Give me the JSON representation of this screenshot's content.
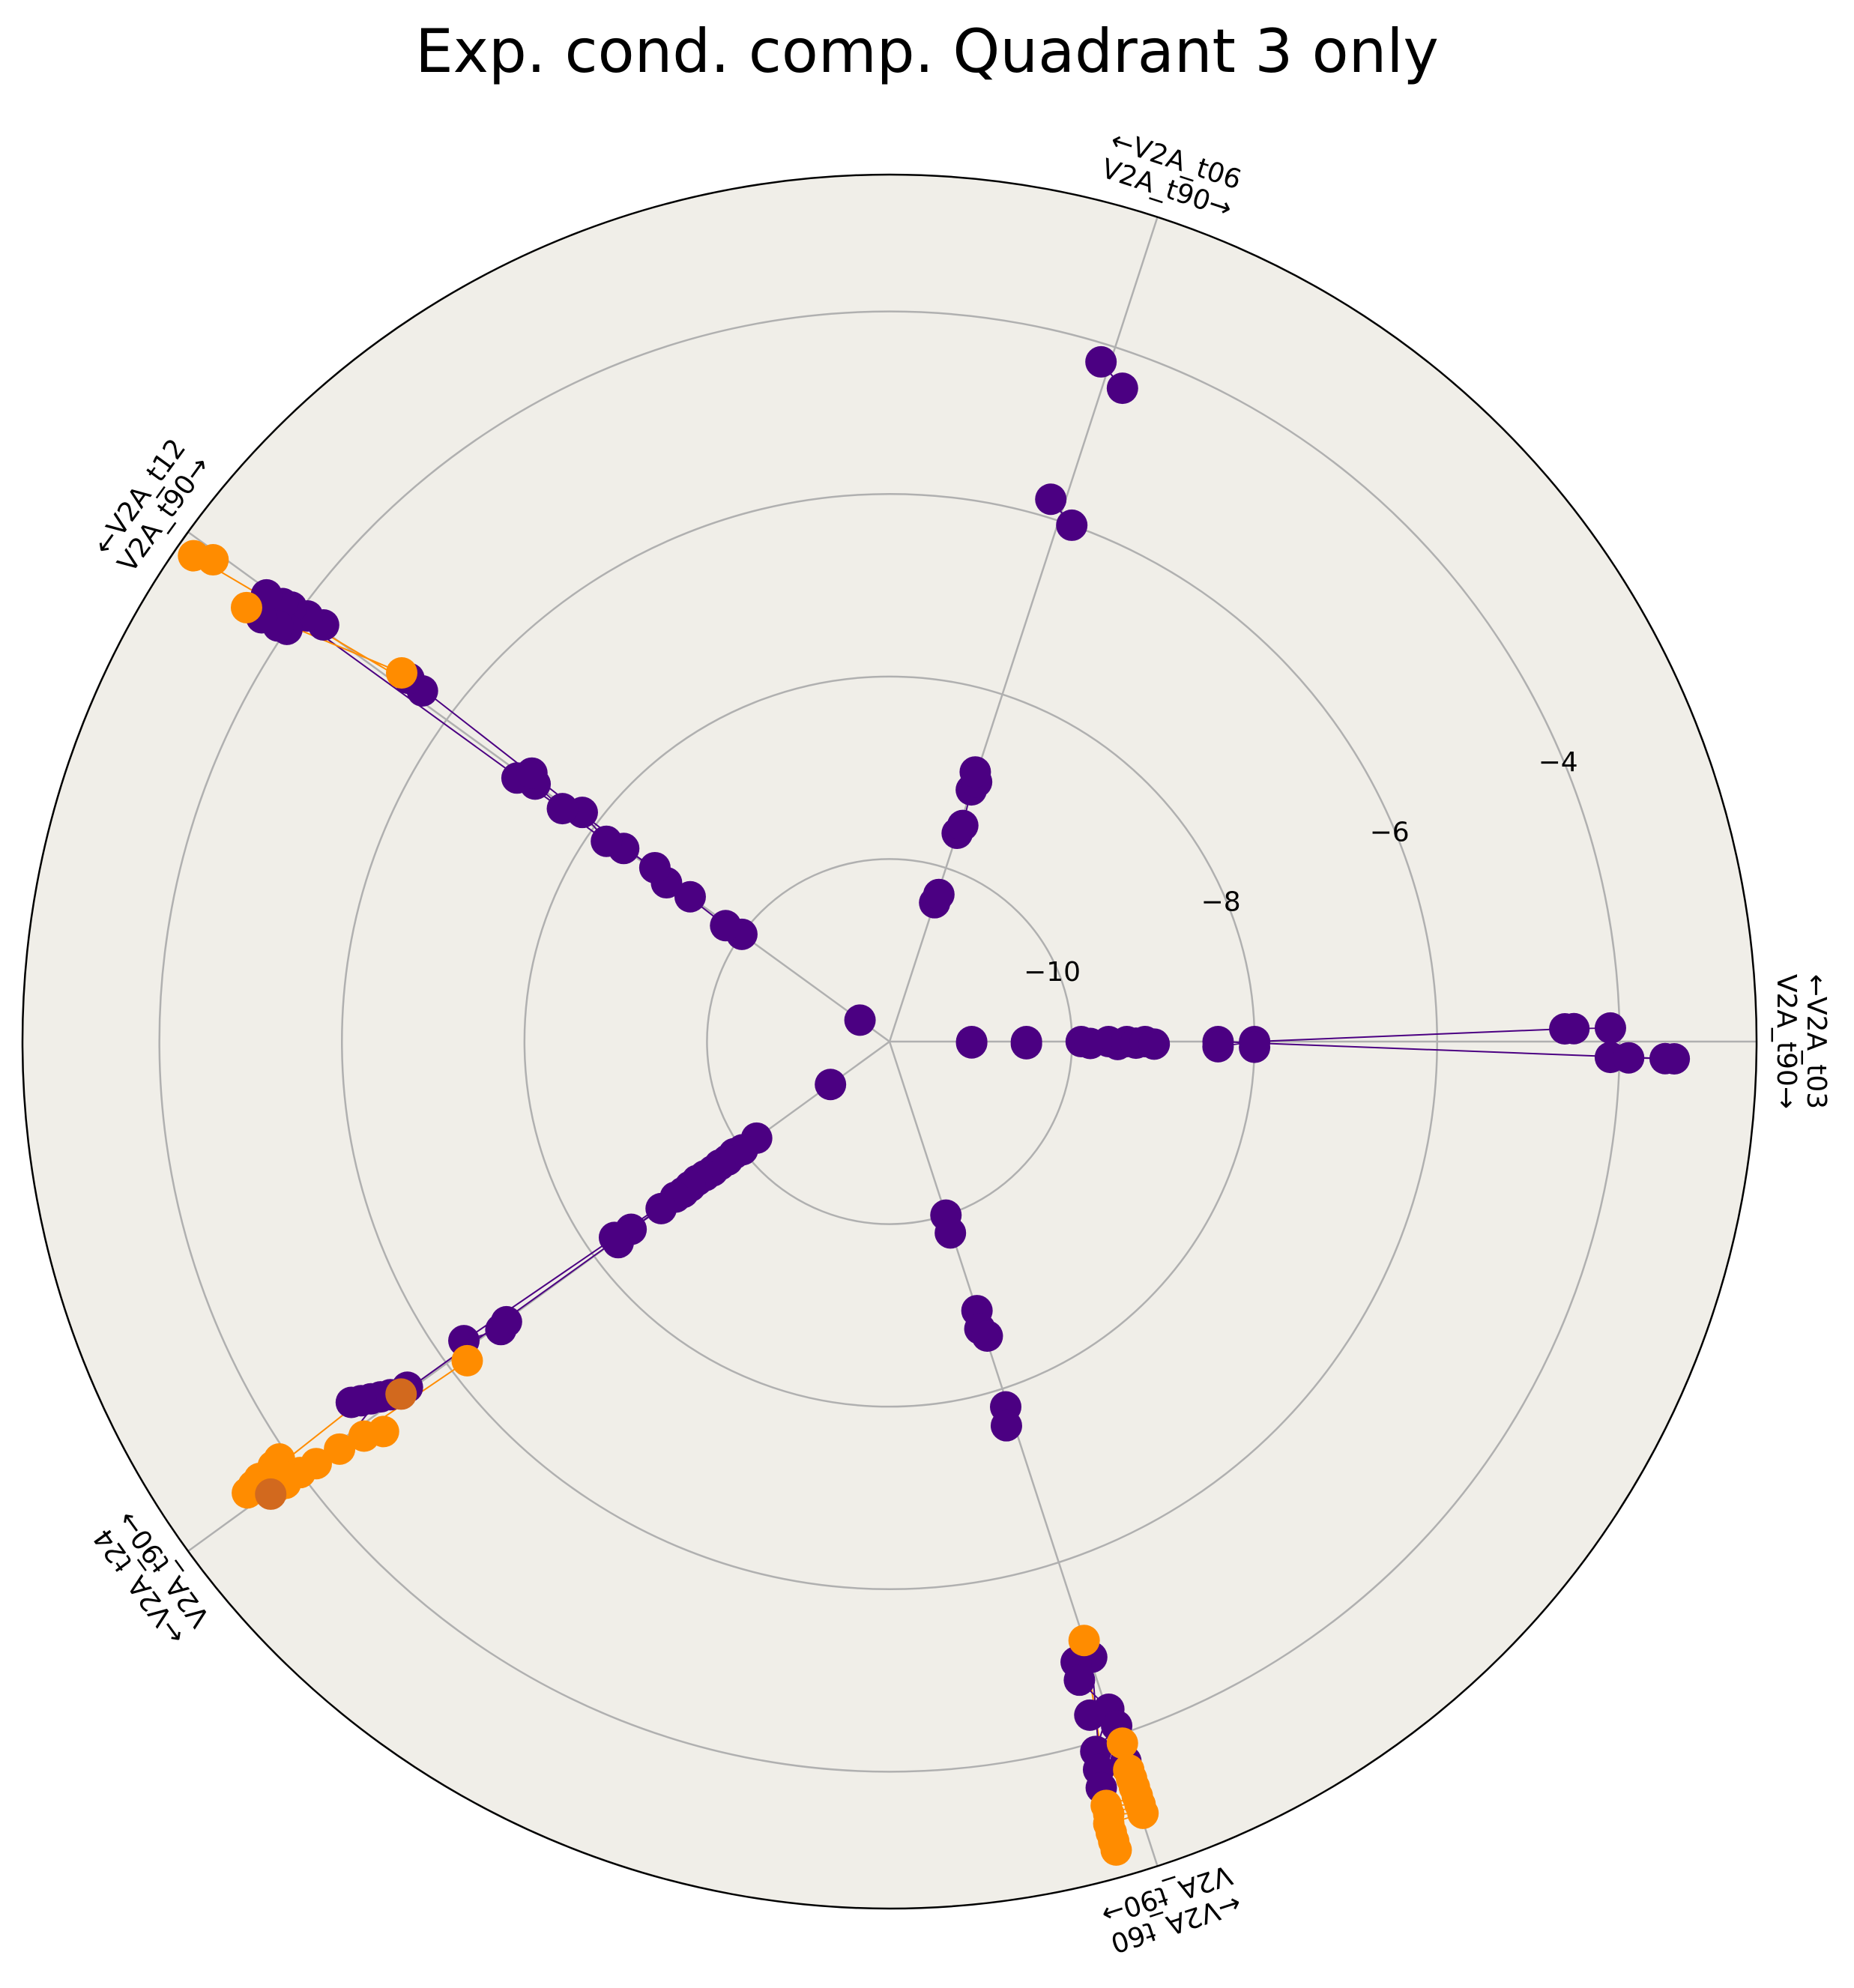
{
  "chart_data": {
    "type": "scatter",
    "subtype": "radar-polar",
    "title": "Exp. cond. comp. Quadrant 3 only",
    "radial_axis": {
      "range": [
        -12.0,
        -2.5
      ],
      "ticks": [
        -10,
        -8,
        -6,
        -4
      ],
      "tick_labels": [
        "−10",
        "−8",
        "−6",
        "−4"
      ],
      "grid": true
    },
    "background_color": "#f0eee8",
    "colors": {
      "purple": "#4b0082",
      "orange": "#ff8c00",
      "brown": "#d2691e",
      "grid": "#b0b0b0"
    },
    "axes": [
      {
        "id": "t03",
        "label_top": "←V2A_t03",
        "label_bottom": "V2A_t90→",
        "angle_deg": 0
      },
      {
        "id": "t06",
        "label_top": "←V2A_t06",
        "label_bottom": "V2A_t90→",
        "angle_deg": 72
      },
      {
        "id": "t12",
        "label_top": "←V2A_t12",
        "label_bottom": "V2A_t90→",
        "angle_deg": 144
      },
      {
        "id": "t24",
        "label_top": "←V2A_t24",
        "label_bottom": "V2A_t90→",
        "angle_deg": 216
      },
      {
        "id": "t60",
        "label_top": "←V2A_t60",
        "label_bottom": "V2A_t90→",
        "angle_deg": 288
      }
    ],
    "points": [
      {
        "axis": "t03",
        "r": -11.1,
        "c": "purple"
      },
      {
        "axis": "t03",
        "r": -11.1,
        "c": "purple",
        "o": -0.5
      },
      {
        "axis": "t03",
        "r": -10.5,
        "c": "purple"
      },
      {
        "axis": "t03",
        "r": -10.5,
        "c": "purple",
        "o": -0.5
      },
      {
        "axis": "t03",
        "r": -9.9,
        "c": "purple"
      },
      {
        "axis": "t03",
        "r": -9.8,
        "c": "purple",
        "o": -0.3
      },
      {
        "axis": "t03",
        "r": -9.6,
        "c": "purple"
      },
      {
        "axis": "t03",
        "r": -9.5,
        "c": "purple",
        "o": -0.4
      },
      {
        "axis": "t03",
        "r": -9.4,
        "c": "purple"
      },
      {
        "axis": "t03",
        "r": -9.3,
        "c": "purple",
        "o": -0.2
      },
      {
        "axis": "t03",
        "r": -9.2,
        "c": "purple"
      },
      {
        "axis": "t03",
        "r": -9.1,
        "c": "purple",
        "o": -0.3
      },
      {
        "axis": "t03",
        "r": -8.4,
        "c": "purple"
      },
      {
        "axis": "t03",
        "r": -8.4,
        "c": "purple",
        "o": -0.5
      },
      {
        "axis": "t03",
        "r": -8.0,
        "c": "purple"
      },
      {
        "axis": "t03",
        "r": -8.0,
        "c": "purple",
        "o": -0.5
      },
      {
        "axis": "t03",
        "r": -4.6,
        "c": "purple",
        "o": 0.6
      },
      {
        "axis": "t03",
        "r": -4.5,
        "c": "purple",
        "o": 0.6
      },
      {
        "axis": "t03",
        "r": -4.1,
        "c": "purple",
        "o": 0.6
      },
      {
        "axis": "t03",
        "r": -4.1,
        "c": "purple",
        "o": -0.7
      },
      {
        "axis": "t03",
        "r": -3.9,
        "c": "purple",
        "o": -0.7
      },
      {
        "axis": "t03",
        "r": -3.5,
        "c": "purple",
        "o": -0.7
      },
      {
        "axis": "t03",
        "r": -3.4,
        "c": "purple",
        "o": -0.7
      },
      {
        "axis": "t06",
        "r": -10.4,
        "c": "purple"
      },
      {
        "axis": "t06",
        "r": -10.3,
        "c": "purple",
        "o": -0.3
      },
      {
        "axis": "t06",
        "r": -9.6,
        "c": "purple"
      },
      {
        "axis": "t06",
        "r": -9.5,
        "c": "purple",
        "o": -0.4
      },
      {
        "axis": "t06",
        "r": -9.1,
        "c": "purple"
      },
      {
        "axis": "t06",
        "r": -9.0,
        "c": "purple",
        "o": -0.3
      },
      {
        "axis": "t06",
        "r": -8.9,
        "c": "purple",
        "o": 0.2
      },
      {
        "axis": "t06",
        "r": -6.0,
        "c": "purple",
        "o": -0.8
      },
      {
        "axis": "t06",
        "r": -5.8,
        "c": "purple",
        "o": 0.8
      },
      {
        "axis": "t06",
        "r": -4.4,
        "c": "purple",
        "o": -0.9
      },
      {
        "axis": "t06",
        "r": -4.2,
        "c": "purple",
        "o": 0.4
      },
      {
        "axis": "t12",
        "r": -11.6,
        "c": "purple"
      },
      {
        "axis": "t12",
        "r": -10.0,
        "c": "purple"
      },
      {
        "axis": "t12",
        "r": -9.8,
        "c": "purple",
        "o": 0.4
      },
      {
        "axis": "t12",
        "r": -9.3,
        "c": "purple"
      },
      {
        "axis": "t12",
        "r": -9.0,
        "c": "purple",
        "o": 0.3
      },
      {
        "axis": "t12",
        "r": -8.8,
        "c": "purple",
        "o": -0.3
      },
      {
        "axis": "t12",
        "r": -8.4,
        "c": "purple"
      },
      {
        "axis": "t12",
        "r": -8.2,
        "c": "purple",
        "o": 0.4
      },
      {
        "axis": "t12",
        "r": -7.8,
        "c": "purple",
        "o": -0.4
      },
      {
        "axis": "t12",
        "r": -7.6,
        "c": "purple",
        "o": 0.3
      },
      {
        "axis": "t12",
        "r": -7.2,
        "c": "purple"
      },
      {
        "axis": "t12",
        "r": -7.0,
        "c": "purple",
        "o": 0.4
      },
      {
        "axis": "t12",
        "r": -7.1,
        "c": "purple",
        "o": -0.5
      },
      {
        "axis": "t12",
        "r": -5.6,
        "c": "purple",
        "o": -0.5
      },
      {
        "axis": "t12",
        "r": -5.4,
        "c": "purple",
        "o": -0.6
      },
      {
        "axis": "t12",
        "r": -5.3,
        "c": "orange",
        "o": -0.6
      },
      {
        "axis": "t12",
        "r": -4.3,
        "c": "purple",
        "o": -0.2
      },
      {
        "axis": "t12",
        "r": -4.1,
        "c": "purple",
        "o": -0.1
      },
      {
        "axis": "t12",
        "r": -3.9,
        "c": "purple"
      },
      {
        "axis": "t12",
        "r": -3.8,
        "c": "purple",
        "o": 0.1
      },
      {
        "axis": "t12",
        "r": -3.6,
        "c": "purple",
        "o": 0.2
      },
      {
        "axis": "t12",
        "r": -4.0,
        "c": "purple",
        "o": 0.9
      },
      {
        "axis": "t12",
        "r": -3.9,
        "c": "purple",
        "o": 1.0
      },
      {
        "axis": "t12",
        "r": -3.7,
        "c": "purple",
        "o": 1.1
      },
      {
        "axis": "t12",
        "r": -3.5,
        "c": "orange",
        "o": 1.1
      },
      {
        "axis": "t12",
        "r": -2.9,
        "c": "orange",
        "o": 0.3
      },
      {
        "axis": "t12",
        "r": -2.7,
        "c": "orange",
        "o": 0.6
      },
      {
        "axis": "t24",
        "r": -11.2,
        "c": "purple"
      },
      {
        "axis": "t24",
        "r": -10.2,
        "c": "purple"
      },
      {
        "axis": "t24",
        "r": -10.0,
        "c": "purple",
        "o": 0.2
      },
      {
        "axis": "t24",
        "r": -9.9,
        "c": "purple",
        "o": -0.1
      },
      {
        "axis": "t24",
        "r": -9.8,
        "c": "purple",
        "o": 0.1
      },
      {
        "axis": "t24",
        "r": -9.7,
        "c": "purple"
      },
      {
        "axis": "t24",
        "r": -9.6,
        "c": "purple",
        "o": 0.1
      },
      {
        "axis": "t24",
        "r": -9.5,
        "c": "purple"
      },
      {
        "axis": "t24",
        "r": -9.4,
        "c": "purple",
        "o": -0.1
      },
      {
        "axis": "t24",
        "r": -9.3,
        "c": "purple"
      },
      {
        "axis": "t24",
        "r": -9.2,
        "c": "purple",
        "o": 0.1
      },
      {
        "axis": "t24",
        "r": -9.1,
        "c": "purple"
      },
      {
        "axis": "t24",
        "r": -8.9,
        "c": "purple",
        "o": 0.1
      },
      {
        "axis": "t24",
        "r": -8.5,
        "c": "purple"
      },
      {
        "axis": "t24",
        "r": -8.3,
        "c": "purple",
        "o": 0.3
      },
      {
        "axis": "t24",
        "r": -8.3,
        "c": "purple",
        "o": -0.3
      },
      {
        "axis": "t24",
        "r": -6.8,
        "c": "purple",
        "o": 0.1
      },
      {
        "axis": "t24",
        "r": -6.7,
        "c": "purple",
        "o": 0.3
      },
      {
        "axis": "t24",
        "r": -6.3,
        "c": "purple",
        "o": -0.5
      },
      {
        "axis": "t24",
        "r": -6.2,
        "c": "orange",
        "o": 0.6
      },
      {
        "axis": "t24",
        "r": -5.5,
        "c": "purple",
        "o": -0.2
      },
      {
        "axis": "t24",
        "r": -5.3,
        "c": "purple",
        "o": -0.4
      },
      {
        "axis": "t24",
        "r": -5.2,
        "c": "purple",
        "o": -0.6
      },
      {
        "axis": "t24",
        "r": -5.1,
        "c": "purple",
        "o": -0.8
      },
      {
        "axis": "t24",
        "r": -5.0,
        "c": "purple",
        "o": -1.0
      },
      {
        "axis": "t24",
        "r": -4.9,
        "c": "purple",
        "o": -1.2
      },
      {
        "axis": "t24",
        "r": -5.4,
        "c": "brown",
        "o": -0.1
      },
      {
        "axis": "t24",
        "r": -5.0,
        "c": "orange",
        "o": 0.9
      },
      {
        "axis": "t24",
        "r": -4.8,
        "c": "orange",
        "o": 0.5
      },
      {
        "axis": "t24",
        "r": -4.5,
        "c": "orange",
        "o": 0.3
      },
      {
        "axis": "t24",
        "r": -4.2,
        "c": "orange",
        "o": 0.2
      },
      {
        "axis": "t24",
        "r": -4.0,
        "c": "orange",
        "o": 0.1
      },
      {
        "axis": "t24",
        "r": -3.8,
        "c": "orange",
        "o": 0.1
      },
      {
        "axis": "t24",
        "r": -3.7,
        "c": "orange"
      },
      {
        "axis": "t24",
        "r": -3.6,
        "c": "brown",
        "o": 0.1
      },
      {
        "axis": "t24",
        "r": -3.9,
        "c": "orange",
        "o": -0.9
      },
      {
        "axis": "t24",
        "r": -3.8,
        "c": "orange",
        "o": -0.8
      },
      {
        "axis": "t24",
        "r": -3.6,
        "c": "orange",
        "o": -0.7
      },
      {
        "axis": "t24",
        "r": -3.5,
        "c": "orange",
        "o": -0.6
      },
      {
        "axis": "t24",
        "r": -3.4,
        "c": "orange",
        "o": -0.5
      },
      {
        "axis": "t60",
        "r": -10.0,
        "c": "purple"
      },
      {
        "axis": "t60",
        "r": -9.8,
        "c": "purple",
        "o": -0.2
      },
      {
        "axis": "t60",
        "r": -8.9,
        "c": "purple"
      },
      {
        "axis": "t60",
        "r": -8.7,
        "c": "purple",
        "o": -0.3
      },
      {
        "axis": "t60",
        "r": -8.6,
        "c": "purple",
        "o": 0.2
      },
      {
        "axis": "t60",
        "r": -7.8,
        "c": "purple",
        "o": -0.2
      },
      {
        "axis": "t60",
        "r": -7.6,
        "c": "purple",
        "o": -0.6
      },
      {
        "axis": "t60",
        "r": -5.1,
        "c": "orange"
      },
      {
        "axis": "t60",
        "r": -4.9,
        "c": "purple",
        "o": 0.1
      },
      {
        "axis": "t60",
        "r": -4.9,
        "c": "purple",
        "o": -0.7
      },
      {
        "axis": "t60",
        "r": -4.7,
        "c": "purple",
        "o": -0.8
      },
      {
        "axis": "t60",
        "r": -4.3,
        "c": "purple",
        "o": 0.1
      },
      {
        "axis": "t60",
        "r": -4.1,
        "c": "purple",
        "o": 0.2
      },
      {
        "axis": "t60",
        "r": -4.3,
        "c": "purple",
        "o": -0.8
      },
      {
        "axis": "t60",
        "r": -3.9,
        "c": "purple",
        "o": -1.0
      },
      {
        "axis": "t60",
        "r": -3.7,
        "c": "purple",
        "o": -1.1
      },
      {
        "axis": "t60",
        "r": -3.5,
        "c": "purple",
        "o": -1.2
      },
      {
        "axis": "t60",
        "r": -3.9,
        "c": "orange",
        "o": 0.2
      },
      {
        "axis": "t60",
        "r": -3.7,
        "c": "purple",
        "o": 0.1
      },
      {
        "axis": "t60",
        "r": -3.6,
        "c": "orange",
        "o": 0.1
      },
      {
        "axis": "t60",
        "r": -3.5,
        "c": "orange",
        "o": 0.1
      },
      {
        "axis": "t60",
        "r": -3.4,
        "c": "orange",
        "o": 0.1
      },
      {
        "axis": "t60",
        "r": -3.3,
        "c": "orange",
        "o": 0.1
      },
      {
        "axis": "t60",
        "r": -3.2,
        "c": "orange",
        "o": 0.1
      },
      {
        "axis": "t60",
        "r": -3.1,
        "c": "orange",
        "o": 0.1
      },
      {
        "axis": "t60",
        "r": -3.3,
        "c": "orange",
        "o": -1.2
      },
      {
        "axis": "t60",
        "r": -3.2,
        "c": "orange",
        "o": -1.2
      },
      {
        "axis": "t60",
        "r": -3.1,
        "c": "orange",
        "o": -1.3
      },
      {
        "axis": "t60",
        "r": -3.0,
        "c": "orange",
        "o": -1.3
      },
      {
        "axis": "t60",
        "r": -2.9,
        "c": "orange",
        "o": -1.3
      },
      {
        "axis": "t60",
        "r": -2.8,
        "c": "orange",
        "o": -1.3
      }
    ],
    "connections": [
      {
        "from": [
          2,
          "t03",
          -8.0
        ],
        "to": [
          3,
          "t03",
          -4.6
        ],
        "c": "purple"
      },
      {
        "from": [
          2,
          "t03",
          -8.4
        ],
        "to": [
          3,
          "t03",
          -3.5
        ],
        "c": "purple"
      },
      {
        "from": [
          2,
          "t12",
          -8.2
        ],
        "to": [
          3,
          "t12",
          -3.6
        ],
        "c": "purple"
      },
      {
        "from": [
          2,
          "t12",
          -9.8
        ],
        "to": [
          3,
          "t12",
          -5.4
        ],
        "c": "purple"
      },
      {
        "from": [
          2,
          "t12",
          -5.6
        ],
        "to": [
          3,
          "t12",
          -2.7
        ],
        "c": "orange"
      },
      {
        "from": [
          2,
          "t12",
          -5.3
        ],
        "to": [
          3,
          "t12",
          -3.5
        ],
        "c": "orange"
      },
      {
        "from": [
          2,
          "t12",
          -3.9
        ],
        "to": [
          3,
          "t12",
          -4.0
        ],
        "c": "purple"
      },
      {
        "from": [
          2,
          "t06",
          -6.0
        ],
        "to": [
          3,
          "t06",
          -5.8
        ],
        "c": "purple"
      },
      {
        "from": [
          2,
          "t06",
          -4.4
        ],
        "to": [
          3,
          "t06",
          -4.2
        ],
        "c": "purple"
      },
      {
        "from": [
          2,
          "t24",
          -9.8
        ],
        "to": [
          3,
          "t24",
          -5.4
        ],
        "c": "purple"
      },
      {
        "from": [
          2,
          "t24",
          -9.5
        ],
        "to": [
          3,
          "t24",
          -6.3
        ],
        "c": "purple"
      },
      {
        "from": [
          2,
          "t24",
          -6.2
        ],
        "to": [
          3,
          "t24",
          -3.6
        ],
        "c": "orange"
      },
      {
        "from": [
          2,
          "t24",
          -5.0
        ],
        "to": [
          3,
          "t24",
          -3.5
        ],
        "c": "orange"
      },
      {
        "from": [
          2,
          "t24",
          -4.8
        ],
        "to": [
          3,
          "t24",
          -3.7
        ],
        "c": "orange"
      },
      {
        "from": [
          2,
          "t24",
          -4.5
        ],
        "to": [
          3,
          "t24",
          -3.4
        ],
        "c": "orange"
      },
      {
        "from": [
          2,
          "t24",
          -5.2
        ],
        "to": [
          3,
          "t24",
          -4.5
        ],
        "c": "purple"
      },
      {
        "from": [
          2,
          "t60",
          -5.1
        ],
        "to": [
          3,
          "t60",
          -2.8
        ],
        "c": "orange"
      },
      {
        "from": [
          2,
          "t60",
          -3.9
        ],
        "to": [
          3,
          "t60",
          -3.1
        ],
        "c": "orange"
      },
      {
        "from": [
          2,
          "t60",
          -3.7
        ],
        "to": [
          3,
          "t60",
          -2.9
        ],
        "c": "orange"
      },
      {
        "from": [
          2,
          "t60",
          -3.5
        ],
        "to": [
          3,
          "t60",
          -3.0
        ],
        "c": "orange"
      },
      {
        "from": [
          2,
          "t60",
          -4.9
        ],
        "to": [
          3,
          "t60",
          -3.5
        ],
        "c": "purple"
      },
      {
        "from": [
          2,
          "t60",
          -4.3
        ],
        "to": [
          3,
          "t60",
          -3.9
        ],
        "c": "purple"
      }
    ]
  }
}
